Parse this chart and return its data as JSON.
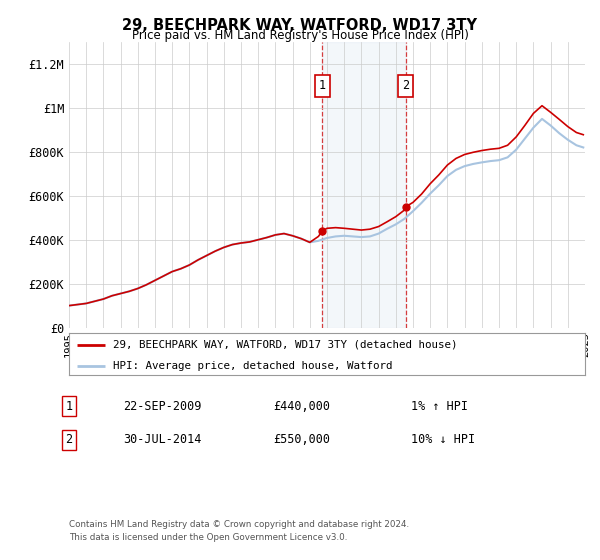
{
  "title": "29, BEECHPARK WAY, WATFORD, WD17 3TY",
  "subtitle": "Price paid vs. HM Land Registry's House Price Index (HPI)",
  "legend_line1": "29, BEECHPARK WAY, WATFORD, WD17 3TY (detached house)",
  "legend_line2": "HPI: Average price, detached house, Watford",
  "transaction1_label": "1",
  "transaction1_date": "22-SEP-2009",
  "transaction1_price": "£440,000",
  "transaction1_hpi": "1% ↑ HPI",
  "transaction2_label": "2",
  "transaction2_date": "30-JUL-2014",
  "transaction2_price": "£550,000",
  "transaction2_hpi": "10% ↓ HPI",
  "footnote1": "Contains HM Land Registry data © Crown copyright and database right 2024.",
  "footnote2": "This data is licensed under the Open Government Licence v3.0.",
  "hpi_color": "#a8c4e0",
  "price_color": "#cc0000",
  "transaction1_x": 2009.73,
  "transaction2_x": 2014.58,
  "ylim": [
    0,
    1300000
  ],
  "xlim_min": 1995,
  "xlim_max": 2025
}
